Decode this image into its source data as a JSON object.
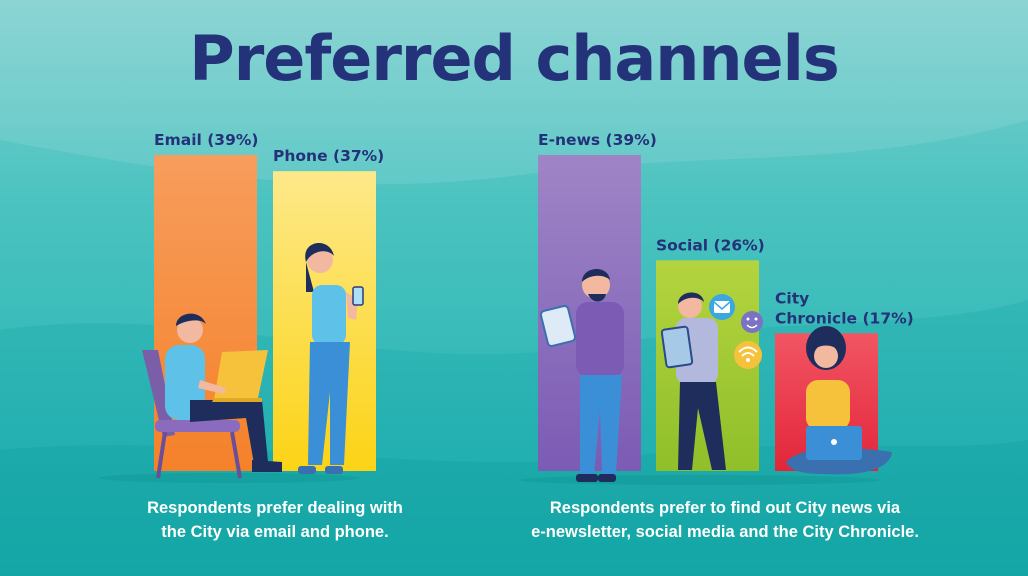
{
  "header": {
    "title": "Preferred channels"
  },
  "chart_data": [
    {
      "type": "bar",
      "categories": [
        "Email (39%)",
        "Phone (37%)"
      ],
      "values": [
        39,
        37
      ],
      "colors": [
        [
          "#f79d5c",
          "#f5812a"
        ],
        [
          "#fde98a",
          "#fcd315"
        ]
      ],
      "ylim": [
        0,
        39
      ],
      "caption": [
        "Respondents prefer dealing with",
        "the City via email and phone."
      ]
    },
    {
      "type": "bar",
      "categories": [
        "E-news (39%)",
        "Social (26%)",
        "City Chronicle (17%)"
      ],
      "values": [
        39,
        26,
        17
      ],
      "colors": [
        [
          "#9f85c6",
          "#7b5bb4"
        ],
        [
          "#b4d43e",
          "#8fbf2a"
        ],
        [
          "#f25563",
          "#e2263a"
        ]
      ],
      "ylim": [
        0,
        39
      ],
      "caption": [
        "Respondents prefer to find out City news via",
        "e-newsletter, social media and the City Chronicle."
      ]
    }
  ],
  "icons": [
    "email-icon",
    "smiley-icon",
    "wifi-icon",
    "laptop-icon",
    "tablet-icon",
    "phone-icon"
  ]
}
